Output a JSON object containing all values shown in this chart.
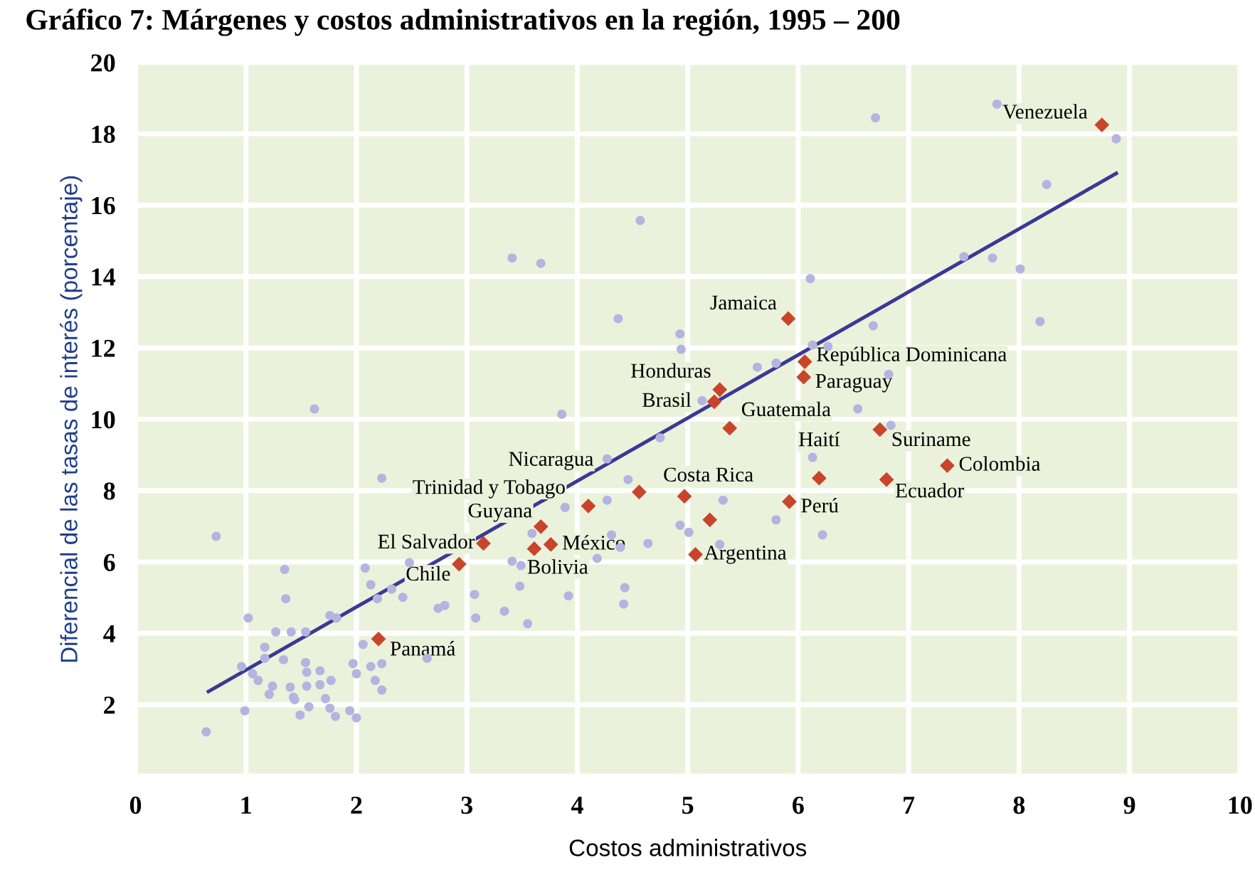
{
  "chart_data": {
    "type": "scatter",
    "title": "Gráfico 7: Márgenes y costos administrativos en la región, 1995 – 200",
    "xlabel": "Costos administrativos",
    "ylabel": "Diferencial de las tasas de interés (porcentaje)",
    "xlim": [
      0,
      10
    ],
    "ylim": [
      0,
      20
    ],
    "xticks": [
      0,
      1,
      2,
      3,
      4,
      5,
      6,
      7,
      8,
      9,
      10
    ],
    "yticks": [
      {
        "value": 0,
        "label": null
      },
      2,
      4,
      6,
      8,
      10,
      12,
      14,
      16,
      18,
      20
    ],
    "grid": true,
    "series": [
      {
        "type": "scatter",
        "marker": "circle",
        "color": "#b4b4e0",
        "x": [
          3.41,
          3.67,
          1.62,
          3.86,
          2.23,
          0.73,
          3.89,
          3.59,
          1.35,
          2.08,
          2.48,
          3.41,
          3.49,
          2.13,
          2.32,
          2.19,
          2.42,
          1.36,
          3.07,
          3.48,
          3.92,
          2.74,
          2.8,
          1.76,
          1.82,
          1.02,
          3.08,
          3.34,
          3.55,
          1.27,
          1.41,
          1.54,
          1.17,
          2.06,
          2.64,
          1.17,
          1.34,
          1.54,
          0.96,
          1.06,
          1.55,
          1.67,
          1.97,
          2.13,
          2.23,
          2.0,
          1.11,
          1.24,
          1.4,
          1.55,
          1.67,
          1.77,
          2.17,
          1.21,
          1.43,
          1.72,
          2.23,
          0.99,
          1.44,
          1.57,
          1.76,
          1.94,
          1.49,
          1.81,
          2.0,
          0.64,
          6.11,
          4.37,
          4.93,
          4.94,
          6.13,
          6.27,
          5.63,
          5.8,
          6.68,
          6.82,
          5.13,
          6.54,
          6.84,
          4.75,
          4.27,
          4.46,
          6.13,
          4.27,
          5.32,
          5.8,
          4.93,
          5.01,
          4.31,
          4.64,
          4.39,
          5.29,
          6.22,
          4.18,
          4.43,
          4.42,
          7.5,
          7.76,
          8.01,
          8.19,
          6.7,
          7.8,
          8.88,
          8.25,
          4.57
        ],
        "values": [
          14.52,
          14.37,
          10.29,
          10.14,
          8.35,
          6.72,
          7.53,
          6.8,
          5.79,
          5.83,
          5.98,
          6.02,
          5.9,
          5.36,
          5.24,
          4.97,
          5.01,
          4.97,
          5.09,
          5.32,
          5.05,
          4.7,
          4.78,
          4.5,
          4.43,
          4.43,
          4.43,
          4.62,
          4.27,
          4.04,
          4.04,
          4.04,
          3.61,
          3.69,
          3.3,
          3.3,
          3.26,
          3.18,
          3.07,
          2.87,
          2.91,
          2.95,
          3.15,
          3.07,
          3.15,
          2.87,
          2.68,
          2.52,
          2.49,
          2.52,
          2.56,
          2.68,
          2.68,
          2.29,
          2.21,
          2.17,
          2.41,
          1.83,
          2.14,
          1.94,
          1.9,
          1.83,
          1.71,
          1.67,
          1.63,
          1.24,
          13.94,
          12.82,
          12.39,
          11.96,
          12.08,
          12.04,
          11.46,
          11.57,
          12.62,
          11.26,
          10.52,
          10.29,
          9.83,
          9.48,
          8.89,
          8.31,
          8.93,
          7.73,
          7.73,
          7.18,
          7.03,
          6.83,
          6.76,
          6.52,
          6.41,
          6.49,
          6.76,
          6.1,
          5.28,
          4.82,
          14.56,
          14.52,
          14.21,
          12.74,
          18.45,
          18.83,
          17.86,
          16.58,
          15.57
        ]
      },
      {
        "type": "scatter",
        "marker": "diamond",
        "color": "#c8452c",
        "x": [
          8.75,
          5.91,
          6.06,
          6.05,
          5.29,
          5.24,
          5.38,
          6.74,
          7.35,
          6.19,
          6.8,
          5.92,
          4.97,
          4.56,
          5.07,
          4.1,
          3.67,
          3.15,
          2.93,
          3.61,
          3.76,
          2.2,
          5.2
        ],
        "values": [
          18.25,
          12.82,
          11.61,
          11.18,
          10.83,
          10.49,
          9.75,
          9.71,
          8.7,
          8.35,
          8.31,
          7.69,
          7.84,
          7.96,
          6.21,
          7.57,
          6.99,
          6.52,
          5.94,
          6.37,
          6.49,
          3.84,
          7.18
        ]
      },
      {
        "type": "line",
        "color": "#3b3896",
        "line_style": "solid",
        "marker": "none",
        "x": [
          0.66,
          8.88
        ],
        "values": [
          2.37,
          16.89
        ]
      }
    ],
    "annotations": [
      {
        "text": "Venezuela",
        "x": 8.75,
        "y": 18.25
      },
      {
        "text": "Jamaica",
        "x": 5.91,
        "y": 12.82
      },
      {
        "text": "República Dominicana",
        "x": 6.06,
        "y": 11.61
      },
      {
        "text": "Paraguay",
        "x": 6.05,
        "y": 11.18
      },
      {
        "text": "Honduras",
        "x": 5.29,
        "y": 10.83
      },
      {
        "text": "Brasil",
        "x": 5.24,
        "y": 10.49
      },
      {
        "text": "Guatemala",
        "x": 5.38,
        "y": 9.75
      },
      {
        "text": "Suriname",
        "x": 6.74,
        "y": 9.71
      },
      {
        "text": "Colombia",
        "x": 7.35,
        "y": 8.7
      },
      {
        "text": "Haití",
        "x": 6.19,
        "y": 8.35
      },
      {
        "text": "Ecuador",
        "x": 6.8,
        "y": 8.31
      },
      {
        "text": "Perú",
        "x": 5.92,
        "y": 7.69
      },
      {
        "text": "Costa Rica",
        "x": 4.97,
        "y": 7.84
      },
      {
        "text": "Nicaragua",
        "x": 4.56,
        "y": 7.96
      },
      {
        "text": "Argentina",
        "x": 5.07,
        "y": 6.21
      },
      {
        "text": "Trinidad y Tobago",
        "x": 4.1,
        "y": 7.57
      },
      {
        "text": "Guyana",
        "x": 3.67,
        "y": 6.99
      },
      {
        "text": "El Salvador",
        "x": 3.15,
        "y": 6.52
      },
      {
        "text": "Chile",
        "x": 2.93,
        "y": 5.94
      },
      {
        "text": "Bolivia",
        "x": 3.61,
        "y": 6.37
      },
      {
        "text": "México",
        "x": 3.76,
        "y": 6.49
      },
      {
        "text": "Panamá",
        "x": 2.2,
        "y": 3.84
      }
    ]
  }
}
